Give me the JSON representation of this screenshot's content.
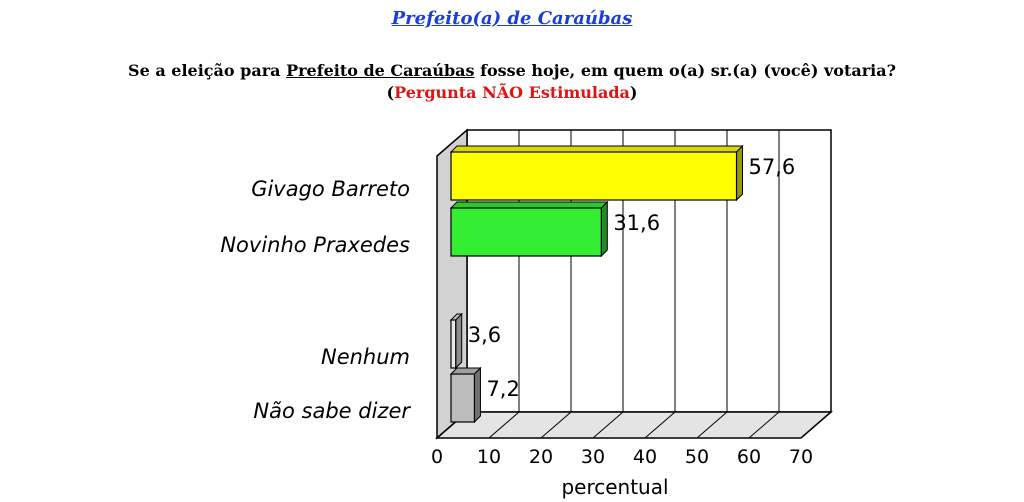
{
  "header": {
    "title": "Prefeito(a) de Caraúbas",
    "question_prefix": "Se a eleição para ",
    "question_underlined": "Prefeito de Caraúbas",
    "question_suffix": " fosse hoje, em quem o(a) sr.(a) (você) votaria?",
    "note_open": "(",
    "note_text": "Pergunta NÃO Estimulada",
    "note_close": ")"
  },
  "colors": {
    "givago": "#ffff00",
    "novinho": "#33ee33",
    "nenhum": "#e8e8e8",
    "nao_sabe": "#bcbcbc"
  },
  "chart_data": {
    "type": "bar",
    "orientation": "horizontal",
    "categories": [
      "Givago Barreto",
      "Novinho Praxedes",
      "Nenhum",
      "Não sabe dizer"
    ],
    "values": [
      57.6,
      31.6,
      3.6,
      7.2
    ],
    "value_labels": [
      "57,6",
      "31,6",
      "3,6",
      "7,2"
    ],
    "xlim": [
      0,
      70
    ],
    "xticks": [
      0,
      10,
      20,
      30,
      40,
      50,
      60,
      70
    ],
    "xlabel": "percentual",
    "grid": true,
    "style": "3d"
  }
}
